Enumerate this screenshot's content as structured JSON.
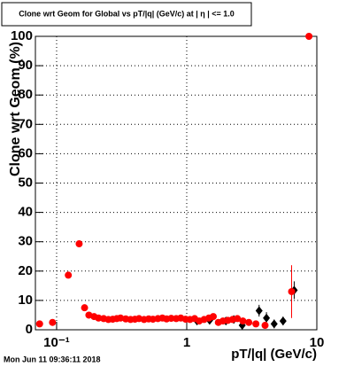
{
  "chart_data": {
    "type": "scatter",
    "title": "Clone wrt Geom for Global vs pT/|q| (GeV/c) at | η | <= 1.0",
    "x_label": "pT/|q| (GeV/c)",
    "y_label": "Clone wrt Geom (%)",
    "timestamp": "Mon Jun 11 09:36:11 2018",
    "x_scale": "log",
    "grid": true,
    "xlim": [
      0.0687,
      10
    ],
    "ylim": [
      0,
      100
    ],
    "xticks": [
      {
        "value": 0.1,
        "label": "10⁻¹"
      },
      1,
      10
    ],
    "yticks": [
      0,
      10,
      20,
      30,
      40,
      50,
      60,
      70,
      80,
      90,
      100
    ],
    "series": [
      {
        "name": "black",
        "color": "#000000",
        "marker": "diamond",
        "x": [
          1.2,
          1.5,
          2.0,
          2.3,
          2.67,
          3.6,
          4.1,
          4.7,
          5.5,
          6.7
        ],
        "values": [
          3,
          3.2,
          3,
          3.5,
          1.5,
          6.5,
          4,
          2,
          3,
          13.5
        ],
        "errors": [
          0.5,
          0.5,
          0.5,
          0.5,
          1,
          2,
          2,
          1.5,
          1.5,
          3
        ]
      },
      {
        "name": "red",
        "color": "#ff0000",
        "marker": "circle",
        "x": [
          0.074,
          0.093,
          0.123,
          0.149,
          0.164,
          0.177,
          0.194,
          0.21,
          0.23,
          0.25,
          0.27,
          0.29,
          0.31,
          0.34,
          0.37,
          0.4,
          0.43,
          0.47,
          0.51,
          0.55,
          0.6,
          0.65,
          0.7,
          0.76,
          0.83,
          0.9,
          0.98,
          1.06,
          1.15,
          1.25,
          1.36,
          1.48,
          1.6,
          1.75,
          1.9,
          2.07,
          2.25,
          2.45,
          2.7,
          3.0,
          3.4,
          4.0,
          6.4,
          8.7
        ],
        "values": [
          2,
          2.5,
          18.6,
          29.3,
          7.5,
          5,
          4.5,
          4,
          3.8,
          3.5,
          3.6,
          3.8,
          4,
          3.7,
          3.5,
          3.6,
          3.8,
          3.5,
          3.7,
          3.6,
          3.8,
          4,
          3.7,
          3.9,
          3.8,
          4,
          3.6,
          3.5,
          3.8,
          3,
          3.5,
          4,
          4.5,
          2.5,
          3,
          3.2,
          3.5,
          3.8,
          3,
          2.5,
          2,
          1.5,
          13,
          100
        ],
        "errors": [
          0.5,
          0.5,
          0.5,
          0.5,
          0.5,
          0.5,
          0.5,
          0.5,
          0.5,
          0.5,
          0.5,
          0.5,
          0.5,
          0.5,
          0.5,
          0.5,
          0.5,
          0.5,
          0.5,
          0.5,
          0.5,
          0.5,
          0.5,
          0.5,
          0.5,
          0.5,
          0.5,
          0.5,
          0.5,
          0.5,
          0.5,
          0.5,
          0.5,
          0.5,
          0.5,
          0.5,
          0.5,
          0.5,
          0.5,
          0.5,
          0.5,
          0.5,
          9,
          0
        ]
      }
    ]
  }
}
